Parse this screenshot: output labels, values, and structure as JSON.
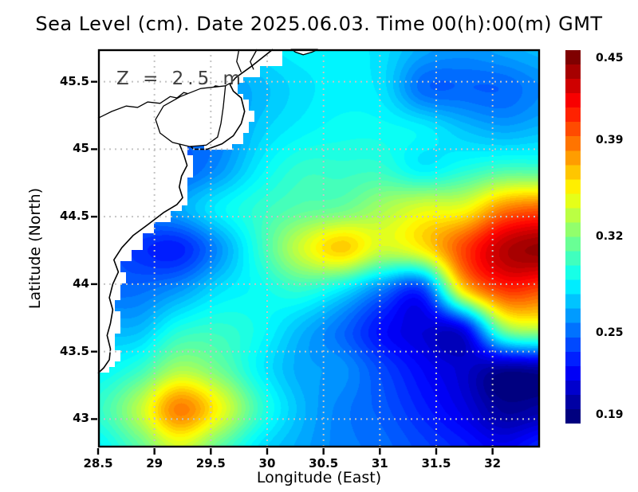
{
  "figure": {
    "background": "#ffffff",
    "colors": {
      "frame": "#000000",
      "grid": "#c4c4c4",
      "land": "#ffffff",
      "coast": "#000000",
      "annotation_text": "#3f3f3f"
    }
  },
  "chart_data": {
    "type": "heatmap",
    "title": "Sea Level (cm). Date 2025.06.03. Time 00(h):00(m) GMT",
    "xlabel": "Longitude (East)",
    "ylabel": "Latitude (North)",
    "annotation": "Z = 2.5 m",
    "xlim": [
      28.5,
      32.42
    ],
    "ylim": [
      42.79,
      45.74
    ],
    "x_ticks": [
      28.5,
      29,
      29.5,
      30,
      30.5,
      31,
      31.5,
      32
    ],
    "x_tick_labels": [
      "28.5",
      "29",
      "29.5",
      "30",
      "30.5",
      "31",
      "31.5",
      "32"
    ],
    "y_ticks": [
      43,
      43.5,
      44,
      44.5,
      45,
      45.5
    ],
    "y_tick_labels": [
      "43",
      "43.5",
      "44",
      "44.5",
      "45",
      "45.5"
    ],
    "grid": {
      "style": "dotted",
      "x_lines": [
        29,
        29.5,
        30,
        30.5,
        31,
        31.5,
        32
      ],
      "y_lines": [
        43,
        43.5,
        44,
        44.5,
        45,
        45.5
      ]
    },
    "colormap": "jet",
    "colorbar": {
      "min": 0.19,
      "max": 0.45,
      "segments": 26,
      "tick_values": [
        0.45,
        0.39,
        0.32,
        0.25,
        0.19
      ],
      "tick_labels": [
        "0.45",
        "0.39",
        "0.32",
        "0.25",
        "0.19"
      ]
    },
    "field": {
      "lon": [
        28.5,
        28.86,
        29.22,
        29.58,
        29.94,
        30.3,
        30.66,
        31.02,
        31.38,
        31.74,
        32.1,
        32.46
      ],
      "lat": [
        45.74,
        45.44,
        45.15,
        44.85,
        44.56,
        44.26,
        43.96,
        43.67,
        43.37,
        43.08,
        42.78
      ],
      "sea_level": [
        [
          0.27,
          0.27,
          0.27,
          0.27,
          0.28,
          0.285,
          0.285,
          0.28,
          0.265,
          0.26,
          0.265,
          0.27
        ],
        [
          0.26,
          0.26,
          0.26,
          0.26,
          0.27,
          0.28,
          0.285,
          0.28,
          0.25,
          0.248,
          0.248,
          0.258
        ],
        [
          0.25,
          0.25,
          0.25,
          0.255,
          0.275,
          0.285,
          0.29,
          0.29,
          0.285,
          0.272,
          0.265,
          0.27
        ],
        [
          0.24,
          0.24,
          0.245,
          0.26,
          0.285,
          0.3,
          0.3,
          0.3,
          0.285,
          0.295,
          0.305,
          0.305
        ],
        [
          0.25,
          0.255,
          0.265,
          0.285,
          0.3,
          0.31,
          0.315,
          0.33,
          0.345,
          0.35,
          0.385,
          0.395
        ],
        [
          0.25,
          0.235,
          0.23,
          0.26,
          0.3,
          0.34,
          0.365,
          0.34,
          0.355,
          0.4,
          0.435,
          0.445
        ],
        [
          0.25,
          0.25,
          0.26,
          0.28,
          0.29,
          0.3,
          0.285,
          0.255,
          0.24,
          0.36,
          0.405,
          0.4
        ],
        [
          0.27,
          0.27,
          0.295,
          0.3,
          0.29,
          0.27,
          0.25,
          0.225,
          0.213,
          0.22,
          0.32,
          0.335
        ],
        [
          0.285,
          0.3,
          0.33,
          0.315,
          0.285,
          0.265,
          0.26,
          0.24,
          0.222,
          0.21,
          0.197,
          0.2
        ],
        [
          0.3,
          0.335,
          0.385,
          0.35,
          0.3,
          0.27,
          0.255,
          0.245,
          0.23,
          0.215,
          0.196,
          0.2
        ],
        [
          0.285,
          0.31,
          0.34,
          0.31,
          0.28,
          0.265,
          0.255,
          0.25,
          0.24,
          0.23,
          0.22,
          0.235
        ]
      ]
    },
    "coastline": {
      "main": [
        [
          30.05,
          45.74
        ],
        [
          29.87,
          45.62
        ],
        [
          29.72,
          45.53
        ],
        [
          29.67,
          45.48
        ],
        [
          29.7,
          45.43
        ],
        [
          29.77,
          45.38
        ],
        [
          29.8,
          45.28
        ],
        [
          29.77,
          45.19
        ],
        [
          29.7,
          45.1
        ],
        [
          29.6,
          45.04
        ],
        [
          29.47,
          45.0
        ],
        [
          29.35,
          45.0
        ],
        [
          29.28,
          45.05
        ],
        [
          29.25,
          45.09
        ],
        [
          29.22,
          45.04
        ],
        [
          29.26,
          44.96
        ],
        [
          29.29,
          44.88
        ],
        [
          29.24,
          44.8
        ],
        [
          29.22,
          44.72
        ],
        [
          29.25,
          44.64
        ],
        [
          29.2,
          44.59
        ],
        [
          29.08,
          44.53
        ],
        [
          28.94,
          44.44
        ],
        [
          28.81,
          44.36
        ],
        [
          28.71,
          44.27
        ],
        [
          28.64,
          44.18
        ],
        [
          28.68,
          44.09
        ],
        [
          28.63,
          44.0
        ],
        [
          28.6,
          43.9
        ],
        [
          28.63,
          43.81
        ],
        [
          28.61,
          43.71
        ],
        [
          28.58,
          43.62
        ],
        [
          28.61,
          43.52
        ],
        [
          28.6,
          43.44
        ],
        [
          28.55,
          43.38
        ],
        [
          28.5,
          43.34
        ]
      ],
      "river": [
        [
          28.5,
          45.23
        ],
        [
          28.62,
          45.28
        ],
        [
          28.75,
          45.32
        ],
        [
          28.85,
          45.31
        ],
        [
          28.94,
          45.35
        ],
        [
          29.05,
          45.34
        ],
        [
          29.14,
          45.39
        ],
        [
          29.2,
          45.38
        ],
        [
          29.26,
          45.42
        ],
        [
          29.35,
          45.4
        ],
        [
          29.41,
          45.44
        ],
        [
          29.48,
          45.43
        ],
        [
          29.54,
          45.47
        ],
        [
          29.61,
          45.46
        ],
        [
          29.67,
          45.49
        ]
      ],
      "lagoon": [
        [
          29.63,
          45.47
        ],
        [
          29.41,
          45.45
        ],
        [
          29.23,
          45.39
        ],
        [
          29.08,
          45.32
        ],
        [
          29.01,
          45.22
        ],
        [
          29.05,
          45.12
        ],
        [
          29.16,
          45.05
        ],
        [
          29.31,
          45.02
        ],
        [
          29.46,
          45.03
        ],
        [
          29.56,
          45.09
        ],
        [
          29.59,
          45.19
        ],
        [
          29.61,
          45.31
        ],
        [
          29.63,
          45.47
        ]
      ],
      "channels": [
        [
          [
            29.75,
            45.74
          ],
          [
            29.73,
            45.65
          ],
          [
            29.77,
            45.57
          ]
        ],
        [
          [
            29.91,
            45.74
          ],
          [
            29.85,
            45.65
          ],
          [
            29.88,
            45.59
          ]
        ]
      ],
      "northeast_sliver": [
        [
          30.22,
          45.74
        ],
        [
          30.25,
          45.72
        ],
        [
          30.32,
          45.7
        ],
        [
          30.4,
          45.72
        ],
        [
          30.45,
          45.74
        ]
      ]
    }
  }
}
